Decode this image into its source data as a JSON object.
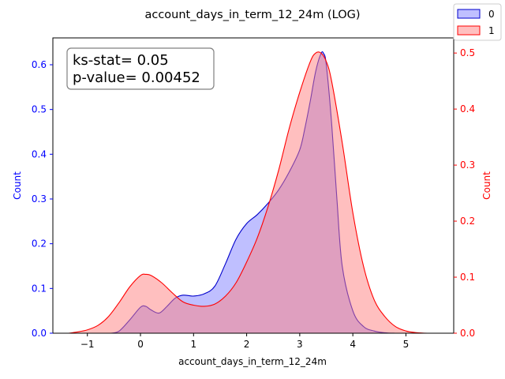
{
  "chart_data": {
    "type": "area",
    "title": "account_days_in_term_12_24m (LOG)",
    "xlabel": "account_days_in_term_12_24m",
    "ylabel_left": "Count",
    "ylabel_right": "Count",
    "xlim": [
      -1.65,
      5.9
    ],
    "ylim_left": [
      0,
      0.66
    ],
    "ylim_right": [
      0,
      0.527
    ],
    "x_ticks": [
      -1,
      0,
      1,
      2,
      3,
      4,
      5
    ],
    "y_left_ticks": [
      0.0,
      0.1,
      0.2,
      0.3,
      0.4,
      0.5,
      0.6
    ],
    "y_right_ticks": [
      0.0,
      0.1,
      0.2,
      0.3,
      0.4,
      0.5
    ],
    "y_left_tick_labels": [
      "0.0",
      "0.1",
      "0.2",
      "0.3",
      "0.4",
      "0.5",
      "0.6"
    ],
    "y_right_tick_labels": [
      "0.0",
      "0.1",
      "0.2",
      "0.3",
      "0.4",
      "0.5"
    ],
    "annotation": [
      "ks-stat= 0.05",
      "p-value= 0.00452"
    ],
    "legend_position": "top-right (outside)",
    "series": [
      {
        "name": "0",
        "axis": "left",
        "line_color": "#0000cc",
        "fill_color": "#8080ff",
        "x": [
          -0.55,
          -0.4,
          -0.2,
          0,
          0.1,
          0.2,
          0.35,
          0.5,
          0.65,
          0.8,
          1.0,
          1.2,
          1.4,
          1.6,
          1.8,
          2.0,
          2.2,
          2.4,
          2.6,
          2.8,
          3.0,
          3.1,
          3.2,
          3.3,
          3.4,
          3.45,
          3.5,
          3.6,
          3.7,
          3.8,
          4.0,
          4.2,
          4.4,
          4.6,
          4.8,
          5.0
        ],
        "y": [
          0.0,
          0.005,
          0.03,
          0.058,
          0.06,
          0.052,
          0.045,
          0.06,
          0.078,
          0.085,
          0.083,
          0.088,
          0.105,
          0.155,
          0.21,
          0.245,
          0.265,
          0.29,
          0.32,
          0.36,
          0.41,
          0.46,
          0.52,
          0.585,
          0.625,
          0.625,
          0.6,
          0.47,
          0.3,
          0.15,
          0.05,
          0.015,
          0.005,
          0.001,
          0.0,
          0.0
        ]
      },
      {
        "name": "1",
        "axis": "right",
        "line_color": "#ff0000",
        "fill_color": "#ff8080",
        "x": [
          -1.35,
          -1.2,
          -1.0,
          -0.8,
          -0.6,
          -0.4,
          -0.2,
          0,
          0.1,
          0.2,
          0.4,
          0.6,
          0.8,
          1.0,
          1.2,
          1.4,
          1.6,
          1.8,
          2.0,
          2.2,
          2.4,
          2.6,
          2.8,
          3.0,
          3.2,
          3.3,
          3.4,
          3.5,
          3.6,
          3.8,
          4.0,
          4.2,
          4.4,
          4.6,
          4.8,
          5.0,
          5.2,
          5.4,
          5.6
        ],
        "y": [
          0.0,
          0.002,
          0.006,
          0.014,
          0.03,
          0.055,
          0.083,
          0.103,
          0.105,
          0.103,
          0.09,
          0.072,
          0.056,
          0.05,
          0.048,
          0.052,
          0.066,
          0.09,
          0.127,
          0.17,
          0.225,
          0.29,
          0.365,
          0.43,
          0.485,
          0.5,
          0.5,
          0.485,
          0.45,
          0.34,
          0.215,
          0.12,
          0.06,
          0.03,
          0.012,
          0.004,
          0.001,
          0.0,
          0.0
        ]
      }
    ]
  }
}
